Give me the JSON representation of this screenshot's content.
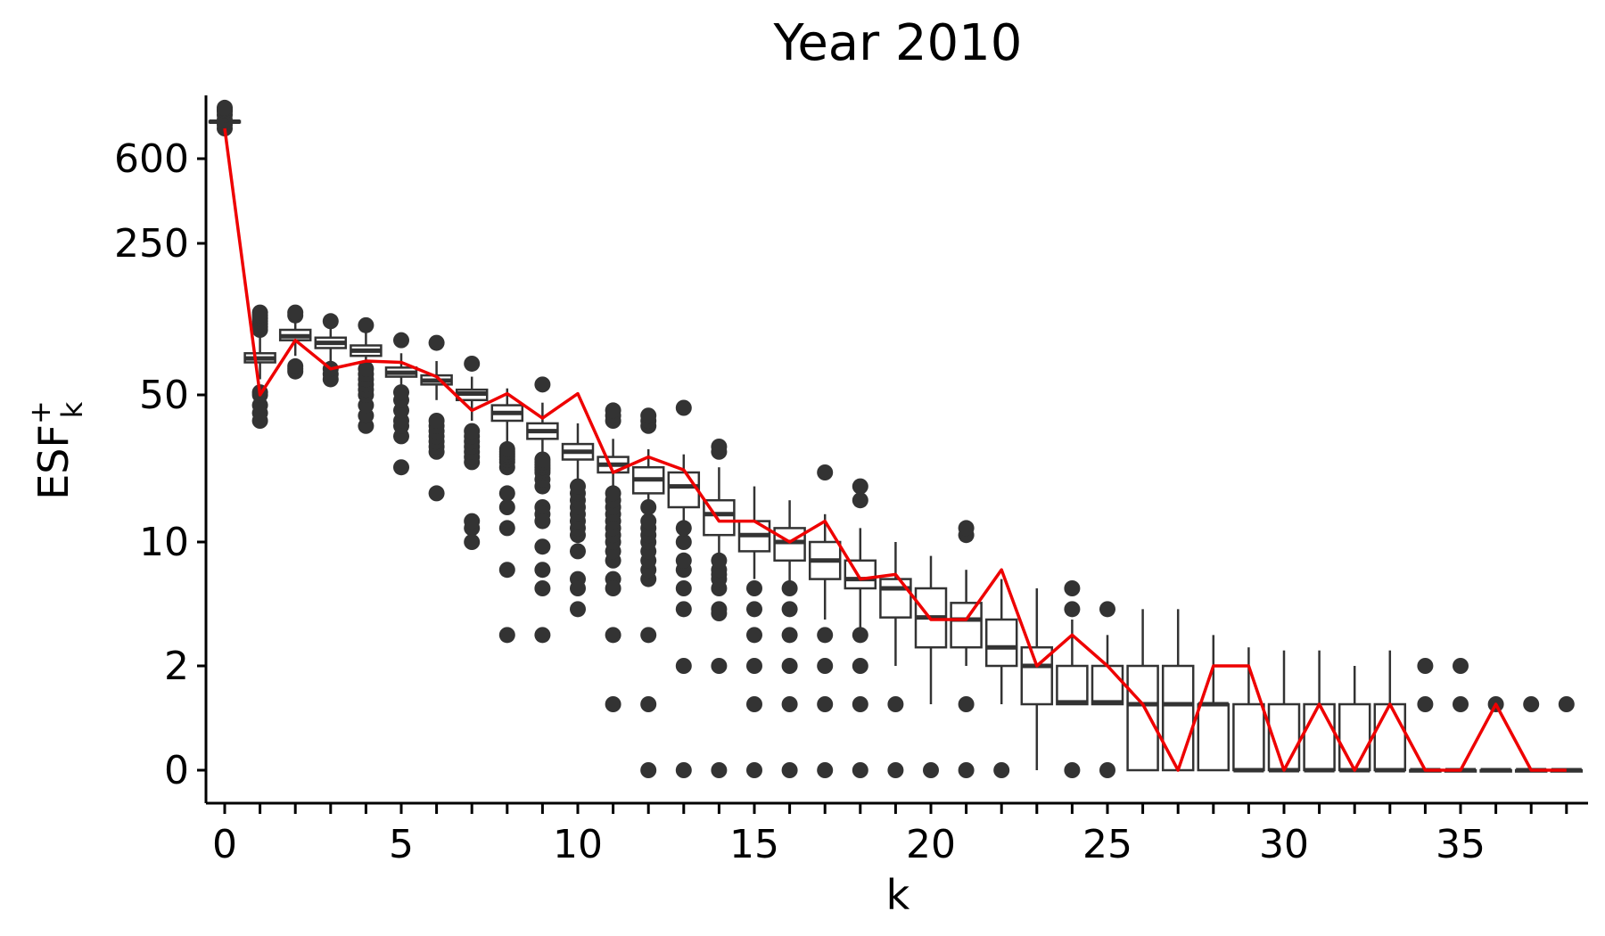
{
  "chart_data": {
    "type": "box",
    "title": "Year 2010",
    "xlabel": "k",
    "ylabel": {
      "base": "ESF",
      "superscript": "+",
      "subscript": "k"
    },
    "x_ticks": [
      0,
      5,
      10,
      15,
      20,
      25,
      30,
      35
    ],
    "y_ticks": [
      0,
      2,
      10,
      50,
      250,
      600
    ],
    "y_scale": "pseudo-log (sqrt-like compressed)",
    "xlim": [
      -0.5,
      38.5
    ],
    "ylim": [
      0,
      1100
    ],
    "colors": {
      "box": "#333333",
      "outlier": "#333333",
      "line": "#ee0000",
      "axis": "#000000"
    },
    "boxes": [
      {
        "k": 0,
        "q1": 900,
        "median": 905,
        "q3": 910,
        "whisker_low": 895,
        "whisker_high": 915
      },
      {
        "k": 1,
        "q1": 75,
        "median": 78,
        "q3": 82,
        "whisker_low": 62,
        "whisker_high": 98
      },
      {
        "k": 2,
        "q1": 92,
        "median": 95,
        "q3": 100,
        "whisker_low": 80,
        "whisker_high": 112
      },
      {
        "k": 3,
        "q1": 86,
        "median": 90,
        "q3": 94,
        "whisker_low": 76,
        "whisker_high": 106
      },
      {
        "k": 4,
        "q1": 80,
        "median": 84,
        "q3": 88,
        "whisker_low": 70,
        "whisker_high": 100
      },
      {
        "k": 5,
        "q1": 64,
        "median": 67,
        "q3": 71,
        "whisker_low": 57,
        "whisker_high": 82
      },
      {
        "k": 6,
        "q1": 58,
        "median": 61,
        "q3": 65,
        "whisker_low": 48,
        "whisker_high": 76
      },
      {
        "k": 7,
        "q1": 48,
        "median": 51,
        "q3": 54,
        "whisker_low": 40,
        "whisker_high": 64
      },
      {
        "k": 8,
        "q1": 40,
        "median": 43,
        "q3": 46,
        "whisker_low": 32,
        "whisker_high": 55
      },
      {
        "k": 9,
        "q1": 33,
        "median": 36,
        "q3": 39,
        "whisker_low": 26,
        "whisker_high": 47
      },
      {
        "k": 10,
        "q1": 25,
        "median": 28,
        "q3": 31,
        "whisker_low": 19,
        "whisker_high": 39
      },
      {
        "k": 11,
        "q1": 20,
        "median": 23,
        "q3": 26,
        "whisker_low": 15,
        "whisker_high": 33
      },
      {
        "k": 12,
        "q1": 17,
        "median": 19,
        "q3": 22,
        "whisker_low": 12,
        "whisker_high": 29
      },
      {
        "k": 13,
        "q1": 15,
        "median": 18,
        "q3": 20,
        "whisker_low": 10,
        "whisker_high": 27
      },
      {
        "k": 14,
        "q1": 11,
        "median": 14,
        "q3": 16,
        "whisker_low": 7,
        "whisker_high": 22
      },
      {
        "k": 15,
        "q1": 9,
        "median": 11,
        "q3": 13,
        "whisker_low": 6,
        "whisker_high": 18
      },
      {
        "k": 16,
        "q1": 8,
        "median": 10,
        "q3": 12,
        "whisker_low": 5,
        "whisker_high": 16
      },
      {
        "k": 17,
        "q1": 6,
        "median": 8,
        "q3": 10,
        "whisker_low": 3.5,
        "whisker_high": 14
      },
      {
        "k": 18,
        "q1": 5,
        "median": 6,
        "q3": 8,
        "whisker_low": 3,
        "whisker_high": 12
      },
      {
        "k": 19,
        "q1": 3.6,
        "median": 5,
        "q3": 6,
        "whisker_low": 2,
        "whisker_high": 10
      },
      {
        "k": 20,
        "q1": 2.6,
        "median": 3.6,
        "q3": 5,
        "whisker_low": 1,
        "whisker_high": 8.5
      },
      {
        "k": 21,
        "q1": 2.6,
        "median": 3.5,
        "q3": 4.3,
        "whisker_low": 2,
        "whisker_high": 7
      },
      {
        "k": 22,
        "q1": 2,
        "median": 2.6,
        "q3": 3.5,
        "whisker_low": 1,
        "whisker_high": 6
      },
      {
        "k": 23,
        "q1": 1,
        "median": 2,
        "q3": 2.6,
        "whisker_low": 0,
        "whisker_high": 5
      },
      {
        "k": 24,
        "q1": 1,
        "median": 1.05,
        "q3": 2,
        "whisker_low": 1,
        "whisker_high": 3.5
      },
      {
        "k": 25,
        "q1": 1,
        "median": 1.05,
        "q3": 2,
        "whisker_low": 1,
        "whisker_high": 3
      },
      {
        "k": 26,
        "q1": 0,
        "median": 1,
        "q3": 2,
        "whisker_low": 0,
        "whisker_high": 4
      },
      {
        "k": 27,
        "q1": 0,
        "median": 1,
        "q3": 2,
        "whisker_low": 0,
        "whisker_high": 4
      },
      {
        "k": 28,
        "q1": 0,
        "median": 1,
        "q3": 1,
        "whisker_low": 0,
        "whisker_high": 3
      },
      {
        "k": 29,
        "q1": 0,
        "median": 0,
        "q3": 1,
        "whisker_low": 0,
        "whisker_high": 2.6
      },
      {
        "k": 30,
        "q1": 0,
        "median": 0,
        "q3": 1,
        "whisker_low": 0,
        "whisker_high": 2.5
      },
      {
        "k": 31,
        "q1": 0,
        "median": 0,
        "q3": 1,
        "whisker_low": 0,
        "whisker_high": 2.5
      },
      {
        "k": 32,
        "q1": 0,
        "median": 0,
        "q3": 1,
        "whisker_low": 0,
        "whisker_high": 2
      },
      {
        "k": 33,
        "q1": 0,
        "median": 0,
        "q3": 1,
        "whisker_low": 0,
        "whisker_high": 2.5
      },
      {
        "k": 34,
        "q1": 0,
        "median": 0,
        "q3": 0,
        "whisker_low": 0,
        "whisker_high": 0
      },
      {
        "k": 35,
        "q1": 0,
        "median": 0,
        "q3": 0,
        "whisker_low": 0,
        "whisker_high": 0
      },
      {
        "k": 36,
        "q1": 0,
        "median": 0,
        "q3": 0,
        "whisker_low": 0,
        "whisker_high": 0
      },
      {
        "k": 37,
        "q1": 0,
        "median": 0,
        "q3": 0,
        "whisker_low": 0,
        "whisker_high": 0
      },
      {
        "k": 38,
        "q1": 0,
        "median": 0,
        "q3": 0,
        "whisker_low": 0,
        "whisker_high": 0
      }
    ],
    "outliers": [
      {
        "k": 0,
        "values": [
          850,
          880,
          920,
          960,
          990,
          1000,
          1010,
          1020
        ]
      },
      {
        "k": 1,
        "values": [
          40,
          43,
          46,
          50,
          52,
          100,
          105,
          110,
          115,
          120,
          125,
          130
        ]
      },
      {
        "k": 2,
        "values": [
          68,
          70,
          72,
          125,
          130
        ]
      },
      {
        "k": 3,
        "values": [
          62,
          66,
          70,
          115
        ]
      },
      {
        "k": 4,
        "values": [
          38,
          42,
          46,
          50,
          54,
          58,
          62,
          66,
          70,
          108
        ]
      },
      {
        "k": 5,
        "values": [
          34,
          38,
          40,
          44,
          48,
          52,
          22,
          92
        ]
      },
      {
        "k": 6,
        "values": [
          28,
          30,
          32,
          34,
          36,
          38,
          40,
          17,
          90
        ]
      },
      {
        "k": 7,
        "values": [
          24,
          26,
          28,
          30,
          32,
          34,
          36,
          12,
          13,
          10,
          74
        ]
      },
      {
        "k": 8,
        "values": [
          22,
          24,
          25,
          26,
          27,
          28,
          29,
          17,
          15,
          12,
          7,
          3
        ]
      },
      {
        "k": 9,
        "values": [
          18,
          19,
          20,
          21,
          22,
          23,
          24,
          25,
          15,
          14,
          13,
          9.5,
          7,
          5,
          3,
          58
        ]
      },
      {
        "k": 10,
        "values": [
          11,
          12,
          13,
          14,
          15,
          16,
          17,
          18,
          9,
          6,
          5,
          4
        ]
      },
      {
        "k": 11,
        "values": [
          8,
          9,
          10,
          11,
          12,
          13,
          14,
          15,
          16,
          17,
          40,
          42,
          44,
          6,
          5,
          3,
          1
        ]
      },
      {
        "k": 12,
        "values": [
          6,
          7,
          8,
          9,
          10,
          11,
          12,
          13,
          15,
          38,
          40,
          42,
          3,
          1,
          0
        ]
      },
      {
        "k": 13,
        "values": [
          7,
          8,
          10,
          12,
          45,
          5,
          4,
          2,
          0
        ]
      },
      {
        "k": 14,
        "values": [
          5,
          6,
          6.5,
          7,
          8,
          28,
          30,
          4,
          3.8,
          2,
          0
        ]
      },
      {
        "k": 15,
        "values": [
          4,
          5,
          3,
          2,
          1,
          0
        ]
      },
      {
        "k": 16,
        "values": [
          4,
          5,
          3,
          2,
          1,
          0
        ]
      },
      {
        "k": 17,
        "values": [
          20,
          3,
          2,
          1,
          0
        ]
      },
      {
        "k": 18,
        "values": [
          16,
          18,
          3,
          2,
          1,
          0
        ]
      },
      {
        "k": 19,
        "values": [
          1,
          0
        ]
      },
      {
        "k": 20,
        "values": [
          0
        ]
      },
      {
        "k": 21,
        "values": [
          11,
          12,
          1,
          0
        ]
      },
      {
        "k": 22,
        "values": [
          0
        ]
      },
      {
        "k": 24,
        "values": [
          4,
          5,
          0
        ]
      },
      {
        "k": 25,
        "values": [
          4,
          0
        ]
      },
      {
        "k": 34,
        "values": [
          1,
          2
        ]
      },
      {
        "k": 35,
        "values": [
          1,
          2
        ]
      },
      {
        "k": 36,
        "values": [
          1
        ]
      },
      {
        "k": 37,
        "values": [
          1
        ]
      },
      {
        "k": 38,
        "values": [
          1
        ]
      }
    ],
    "series": [
      {
        "x": [
          0,
          1,
          2,
          3,
          4,
          5,
          6,
          7,
          8,
          9,
          10,
          11,
          12,
          13,
          14,
          15,
          16,
          17,
          18,
          19,
          20,
          21,
          22,
          23,
          24,
          25,
          26,
          27,
          28,
          29,
          30,
          31,
          32,
          33,
          34,
          35,
          36,
          37,
          38
        ],
        "y": [
          850,
          50,
          92,
          70,
          76,
          75,
          64,
          44,
          51,
          41,
          51,
          20,
          26,
          21,
          13,
          13,
          10,
          13,
          6,
          6.5,
          3.5,
          3.5,
          7,
          2,
          3,
          2,
          1,
          0,
          2,
          2,
          0,
          1,
          0,
          1,
          0,
          0,
          1,
          0,
          0
        ]
      }
    ]
  }
}
